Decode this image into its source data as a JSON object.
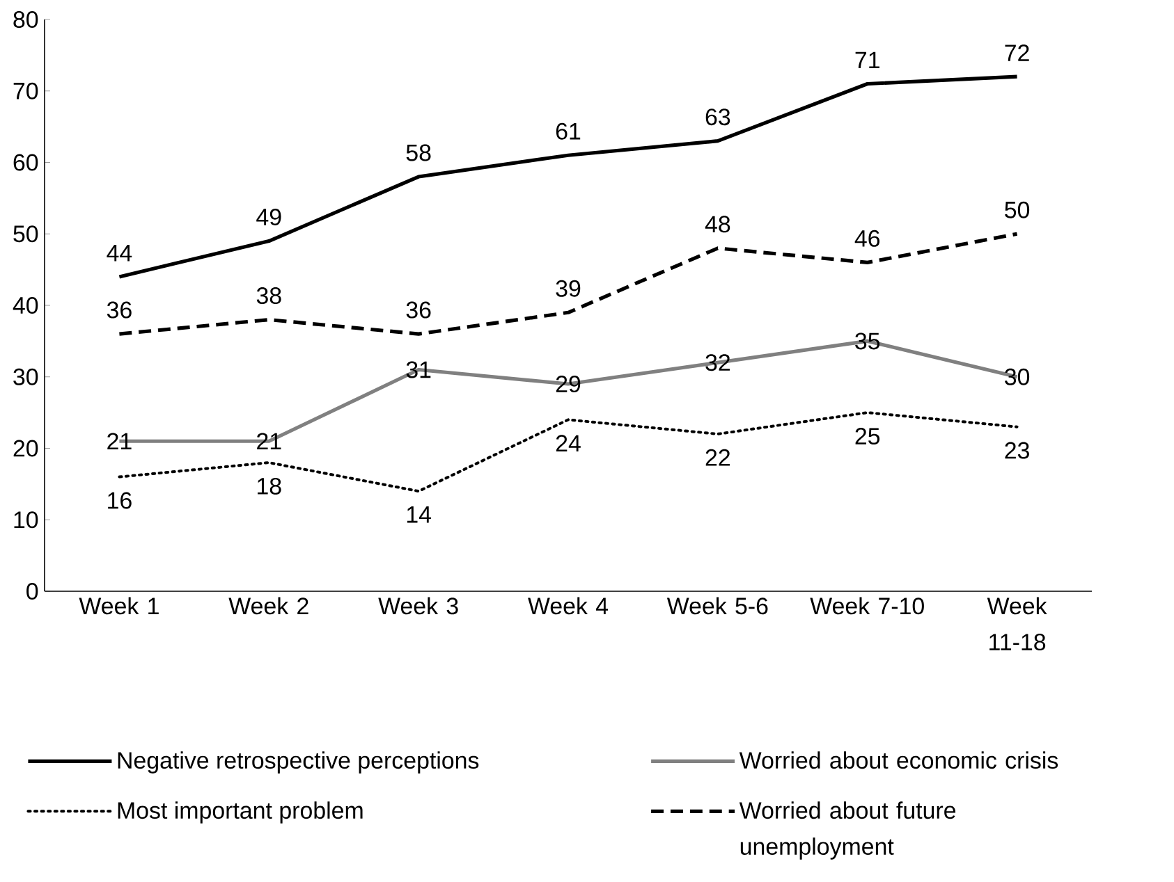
{
  "chart_data": {
    "type": "line",
    "categories": [
      "Week 1",
      "Week 2",
      "Week 3",
      "Week 4",
      "Week 5-6",
      "Week 7-10",
      "Week 11-18"
    ],
    "series": [
      {
        "name": "Negative retrospective perceptions",
        "color": "#000000",
        "line_style": "solid",
        "values": [
          44,
          49,
          58,
          61,
          63,
          71,
          72
        ]
      },
      {
        "name": "Worried about economic crisis",
        "color": "#808080",
        "line_style": "solid",
        "values": [
          21,
          21,
          31,
          29,
          32,
          35,
          30
        ]
      },
      {
        "name": "Most important problem",
        "color": "#000000",
        "line_style": "dotted",
        "values": [
          16,
          18,
          14,
          24,
          22,
          25,
          23
        ]
      },
      {
        "name": "Worried about future unemployment",
        "color": "#000000",
        "line_style": "dashed",
        "values": [
          36,
          38,
          36,
          39,
          48,
          46,
          50
        ]
      }
    ],
    "ylim": [
      0,
      80
    ],
    "yticks": [
      0,
      10,
      20,
      30,
      40,
      50,
      60,
      70,
      80
    ],
    "grid": false,
    "legend": "bottom",
    "marker": "none",
    "data_labels": true
  }
}
